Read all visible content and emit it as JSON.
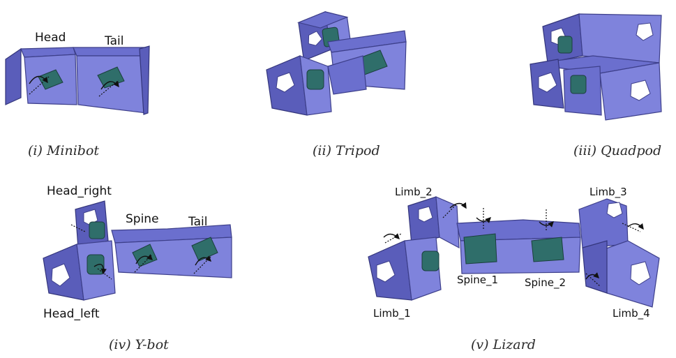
{
  "panels": {
    "minibot": {
      "caption": "(i)  Minibot",
      "labels": {
        "head": "Head",
        "tail": "Tail"
      }
    },
    "tripod": {
      "caption": "(ii) Tripod"
    },
    "quadpod": {
      "caption": "(iii) Quadpod"
    },
    "ybot": {
      "caption": "(iv) Y-bot",
      "labels": {
        "head_right": "Head_right",
        "spine": "Spine",
        "tail": "Tail",
        "head_left": "Head_left"
      }
    },
    "lizard": {
      "caption": "(v) Lizard",
      "labels": {
        "limb_2": "Limb_2",
        "limb_3": "Limb_3",
        "spine_1": "Spine_1",
        "spine_2": "Spine_2",
        "limb_1": "Limb_1",
        "limb_4": "Limb_4"
      }
    }
  },
  "colors": {
    "module": "#6b6fce",
    "servo": "#2f6e6a",
    "outline": "#3d3f8a"
  }
}
